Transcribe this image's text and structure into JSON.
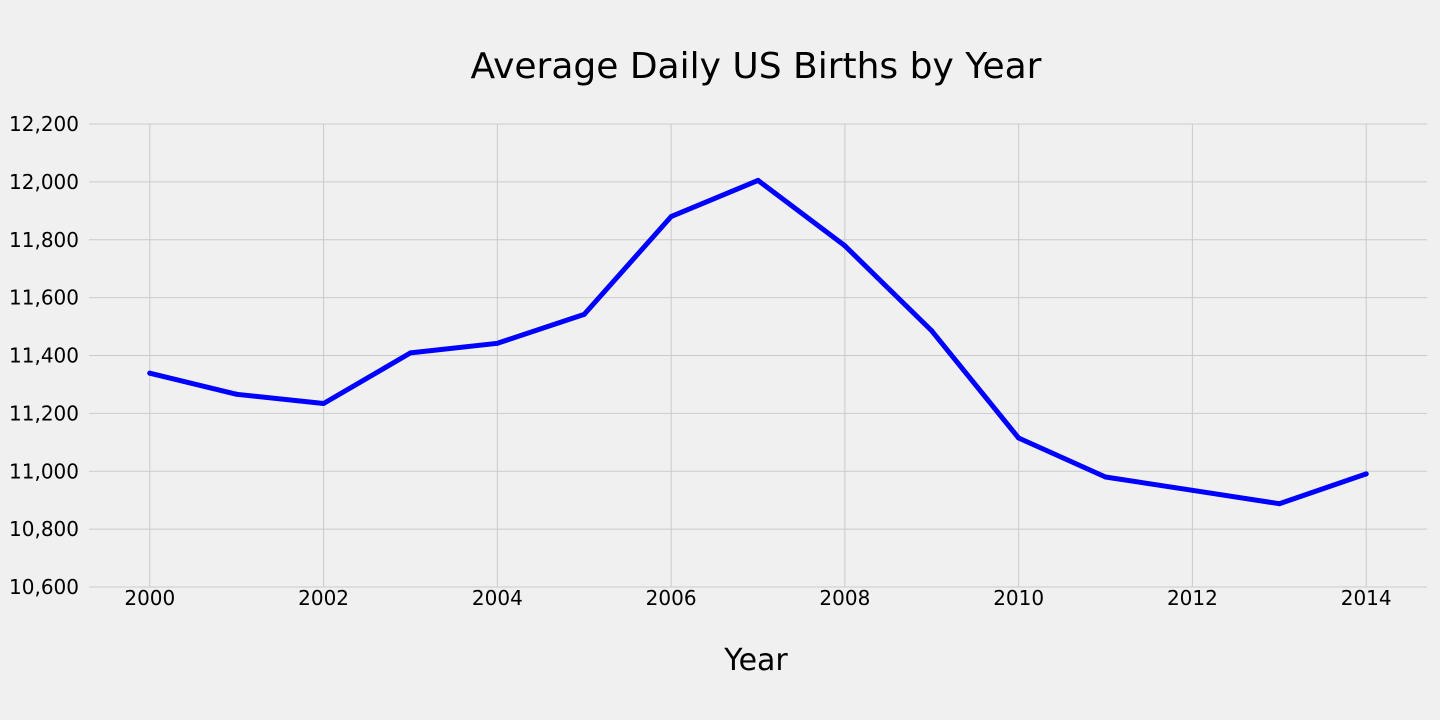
{
  "chart_data": {
    "type": "line",
    "title": "Average Daily US Births by Year",
    "xlabel": "Year",
    "ylabel": "",
    "grid": true,
    "xlim": [
      1999.3,
      2014.7
    ],
    "ylim": [
      10600,
      12200
    ],
    "x_ticks": [
      2000,
      2002,
      2004,
      2006,
      2008,
      2010,
      2012,
      2014
    ],
    "x_tick_labels": [
      "2000",
      "2002",
      "2004",
      "2006",
      "2008",
      "2010",
      "2012",
      "2014"
    ],
    "y_ticks": [
      10600,
      10800,
      11000,
      11200,
      11400,
      11600,
      11800,
      12000,
      12200
    ],
    "y_tick_labels": [
      "10,600",
      "10,800",
      "11,000",
      "11,200",
      "11,400",
      "11,600",
      "11,800",
      "12,000",
      "12,200"
    ],
    "x": [
      2000,
      2001,
      2002,
      2003,
      2004,
      2005,
      2006,
      2007,
      2008,
      2009,
      2010,
      2011,
      2012,
      2013,
      2014
    ],
    "series": [
      {
        "color": "#0000ff",
        "values": [
          11339,
          11266,
          11234,
          11409,
          11442,
          11542,
          11880,
          12005,
          11779,
          11485,
          11115,
          10980,
          10934,
          10888,
          10991
        ]
      }
    ]
  }
}
